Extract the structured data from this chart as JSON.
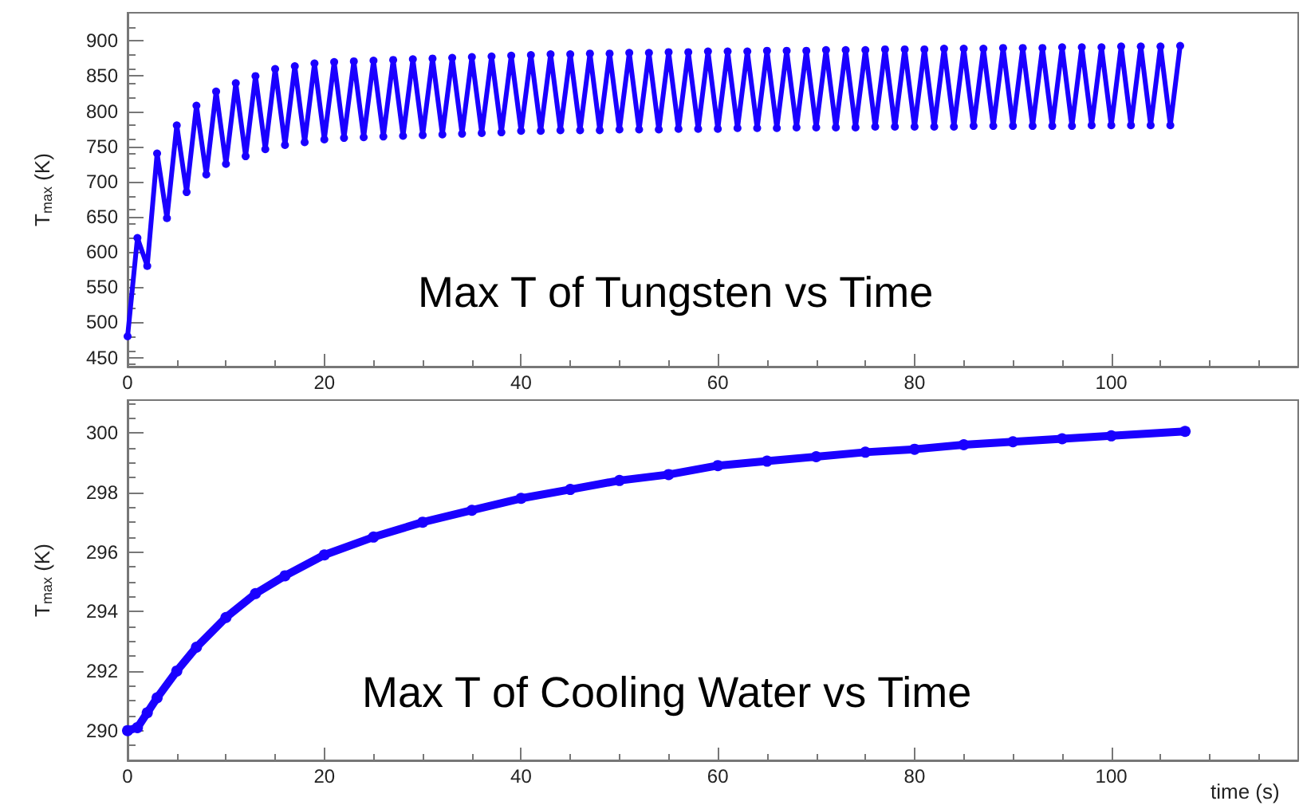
{
  "chart_data": [
    {
      "type": "line",
      "title": "Max T of Tungsten vs Time",
      "ylabel": "T$_{max}$ (K)",
      "marker": "circle",
      "grid": false,
      "xlim": [
        0,
        119
      ],
      "xticks": [
        0,
        20,
        40,
        60,
        80,
        100
      ],
      "ylim": [
        437,
        940
      ],
      "yticks": [
        450,
        500,
        550,
        600,
        650,
        700,
        750,
        800,
        850,
        900
      ],
      "series": [
        {
          "color": "#1a00ff",
          "x": [
            0,
            1,
            2,
            3,
            4,
            5,
            6,
            7,
            8,
            9,
            10,
            11,
            12,
            13,
            14,
            15,
            16,
            17,
            18,
            19,
            20,
            21,
            22,
            23,
            24,
            25,
            26,
            27,
            28,
            29,
            30,
            31,
            32,
            33,
            34,
            35,
            36,
            37,
            38,
            39,
            40,
            41,
            42,
            43,
            44,
            45,
            46,
            47,
            48,
            49,
            50,
            51,
            52,
            53,
            54,
            55,
            56,
            57,
            58,
            59,
            60,
            61,
            62,
            63,
            64,
            65,
            66,
            67,
            68,
            69,
            70,
            71,
            72,
            73,
            74,
            75,
            76,
            77,
            78,
            79,
            80,
            81,
            82,
            83,
            84,
            85,
            86,
            87,
            88,
            89,
            90,
            91,
            92,
            93,
            94,
            95,
            96,
            97,
            98,
            99,
            100,
            101,
            102,
            103,
            104,
            105,
            106,
            107
          ],
          "values": [
            480,
            620,
            580,
            740,
            648,
            780,
            685,
            808,
            710,
            828,
            725,
            840,
            736,
            850,
            746,
            860,
            752,
            864,
            756,
            868,
            760,
            870,
            762,
            871,
            763,
            872,
            764,
            873,
            765,
            874,
            766,
            875,
            767,
            876,
            768,
            877,
            769,
            878,
            770,
            879,
            772,
            880,
            772,
            881,
            773,
            881,
            773,
            882,
            773,
            882,
            774,
            883,
            774,
            883,
            774,
            884,
            775,
            884,
            775,
            885,
            775,
            885,
            776,
            885,
            776,
            886,
            776,
            886,
            777,
            886,
            777,
            887,
            777,
            887,
            777,
            887,
            778,
            888,
            778,
            888,
            778,
            888,
            778,
            889,
            778,
            889,
            779,
            889,
            779,
            890,
            779,
            890,
            779,
            890,
            779,
            891,
            779,
            891,
            780,
            891,
            780,
            892,
            780,
            892,
            780,
            892,
            780,
            893
          ]
        }
      ]
    },
    {
      "type": "line",
      "title": "Max T of Cooling Water vs Time",
      "xlabel": "time (s)",
      "ylabel": "T$_{max}$ (K)",
      "marker": "circle",
      "grid": false,
      "xlim": [
        0,
        119
      ],
      "xticks": [
        0,
        20,
        40,
        60,
        80,
        100
      ],
      "ylim": [
        289,
        301.1
      ],
      "yticks": [
        290,
        292,
        294,
        296,
        298,
        300
      ],
      "series": [
        {
          "color": "#1a00ff",
          "x": [
            0,
            1,
            2,
            3,
            5,
            7,
            10,
            13,
            16,
            20,
            25,
            30,
            35,
            40,
            45,
            50,
            55,
            60,
            65,
            70,
            75,
            80,
            85,
            90,
            95,
            100,
            107.5
          ],
          "values": [
            290,
            290.1,
            290.6,
            291.1,
            292.0,
            292.8,
            293.8,
            294.6,
            295.2,
            295.9,
            296.5,
            297.0,
            297.4,
            297.8,
            298.1,
            298.4,
            298.6,
            298.9,
            299.05,
            299.2,
            299.35,
            299.45,
            299.6,
            299.7,
            299.8,
            299.9,
            300.05
          ]
        }
      ]
    }
  ]
}
